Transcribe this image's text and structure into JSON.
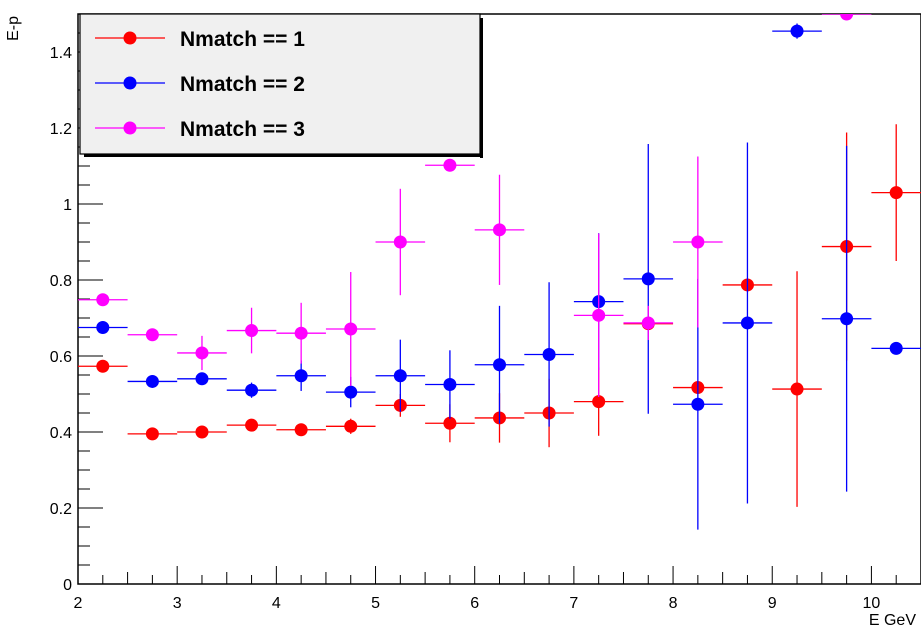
{
  "chart_data": {
    "type": "scatter",
    "title": "",
    "xlabel": "E GeV",
    "ylabel": "E-p",
    "xlim": [
      2,
      10.5
    ],
    "ylim": [
      0,
      1.5
    ],
    "x_ticks": [
      "2",
      "3",
      "4",
      "5",
      "6",
      "7",
      "8",
      "9",
      "10"
    ],
    "y_ticks": [
      "0",
      "0.2",
      "0.4",
      "0.6",
      "0.8",
      "1",
      "1.2",
      "1.4"
    ],
    "legend_placement": "top-left",
    "series": [
      {
        "name": "Nmatch == 1",
        "color": "#ff0000",
        "points": [
          {
            "x": 2.25,
            "y": 0.573,
            "yerr": 0.01
          },
          {
            "x": 2.75,
            "y": 0.395,
            "yerr": 0.01
          },
          {
            "x": 3.25,
            "y": 0.4,
            "yerr": 0.01
          },
          {
            "x": 3.75,
            "y": 0.418,
            "yerr": 0.012
          },
          {
            "x": 4.25,
            "y": 0.406,
            "yerr": 0.012
          },
          {
            "x": 4.75,
            "y": 0.415,
            "yerr": 0.02
          },
          {
            "x": 5.25,
            "y": 0.47,
            "yerr": 0.03
          },
          {
            "x": 5.75,
            "y": 0.423,
            "yerr": 0.05
          },
          {
            "x": 6.25,
            "y": 0.437,
            "yerr": 0.065
          },
          {
            "x": 6.75,
            "y": 0.45,
            "yerr": 0.09
          },
          {
            "x": 7.25,
            "y": 0.48,
            "yerr": 0.09
          },
          {
            "x": 7.75,
            "y": 0.685,
            "yerr": 0.0
          },
          {
            "x": 8.25,
            "y": 0.517,
            "yerr": 0.0
          },
          {
            "x": 8.75,
            "y": 0.787,
            "yerr": 0.0
          },
          {
            "x": 9.25,
            "y": 0.513,
            "yerr": 0.31
          },
          {
            "x": 9.75,
            "y": 0.888,
            "yerr": 0.3
          },
          {
            "x": 10.25,
            "y": 1.03,
            "yerr": 0.18
          }
        ]
      },
      {
        "name": "Nmatch == 2",
        "color": "#0000ff",
        "points": [
          {
            "x": 2.25,
            "y": 0.675,
            "yerr": 0.01
          },
          {
            "x": 2.75,
            "y": 0.533,
            "yerr": 0.01
          },
          {
            "x": 3.25,
            "y": 0.54,
            "yerr": 0.012
          },
          {
            "x": 3.75,
            "y": 0.51,
            "yerr": 0.02
          },
          {
            "x": 4.25,
            "y": 0.548,
            "yerr": 0.04
          },
          {
            "x": 4.75,
            "y": 0.505,
            "yerr": 0.04
          },
          {
            "x": 5.25,
            "y": 0.548,
            "yerr": 0.095
          },
          {
            "x": 5.75,
            "y": 0.525,
            "yerr": 0.09
          },
          {
            "x": 6.25,
            "y": 0.577,
            "yerr": 0.155
          },
          {
            "x": 6.75,
            "y": 0.604,
            "yerr": 0.19
          },
          {
            "x": 7.25,
            "y": 0.743,
            "yerr": 0.18
          },
          {
            "x": 7.75,
            "y": 0.803,
            "yerr": 0.355
          },
          {
            "x": 8.25,
            "y": 0.473,
            "yerr": 0.33
          },
          {
            "x": 8.75,
            "y": 0.687,
            "yerr": 0.475
          },
          {
            "x": 9.25,
            "y": 1.455,
            "yerr": 0.02
          },
          {
            "x": 9.75,
            "y": 0.698,
            "yerr": 0.455
          },
          {
            "x": 10.25,
            "y": 0.62,
            "yerr": 0.0
          }
        ]
      },
      {
        "name": "Nmatch == 3",
        "color": "#ff00ff",
        "points": [
          {
            "x": 2.25,
            "y": 0.748,
            "yerr": 0.01
          },
          {
            "x": 2.75,
            "y": 0.656,
            "yerr": 0.015
          },
          {
            "x": 3.25,
            "y": 0.608,
            "yerr": 0.045
          },
          {
            "x": 3.75,
            "y": 0.667,
            "yerr": 0.06
          },
          {
            "x": 4.25,
            "y": 0.66,
            "yerr": 0.08
          },
          {
            "x": 4.75,
            "y": 0.671,
            "yerr": 0.15
          },
          {
            "x": 5.25,
            "y": 0.9,
            "yerr": 0.14
          },
          {
            "x": 5.75,
            "y": 1.102,
            "yerr": 0.0
          },
          {
            "x": 6.25,
            "y": 0.932,
            "yerr": 0.145
          },
          {
            "x": 6.75,
            "y": null,
            "yerr": 0.0
          },
          {
            "x": 7.25,
            "y": 0.707,
            "yerr": 0.215
          },
          {
            "x": 7.75,
            "y": 0.687,
            "yerr": 0.045
          },
          {
            "x": 8.25,
            "y": 0.9,
            "yerr": 0.225
          },
          {
            "x": 9.75,
            "y": 1.5,
            "yerr": 0.0
          }
        ]
      }
    ]
  }
}
